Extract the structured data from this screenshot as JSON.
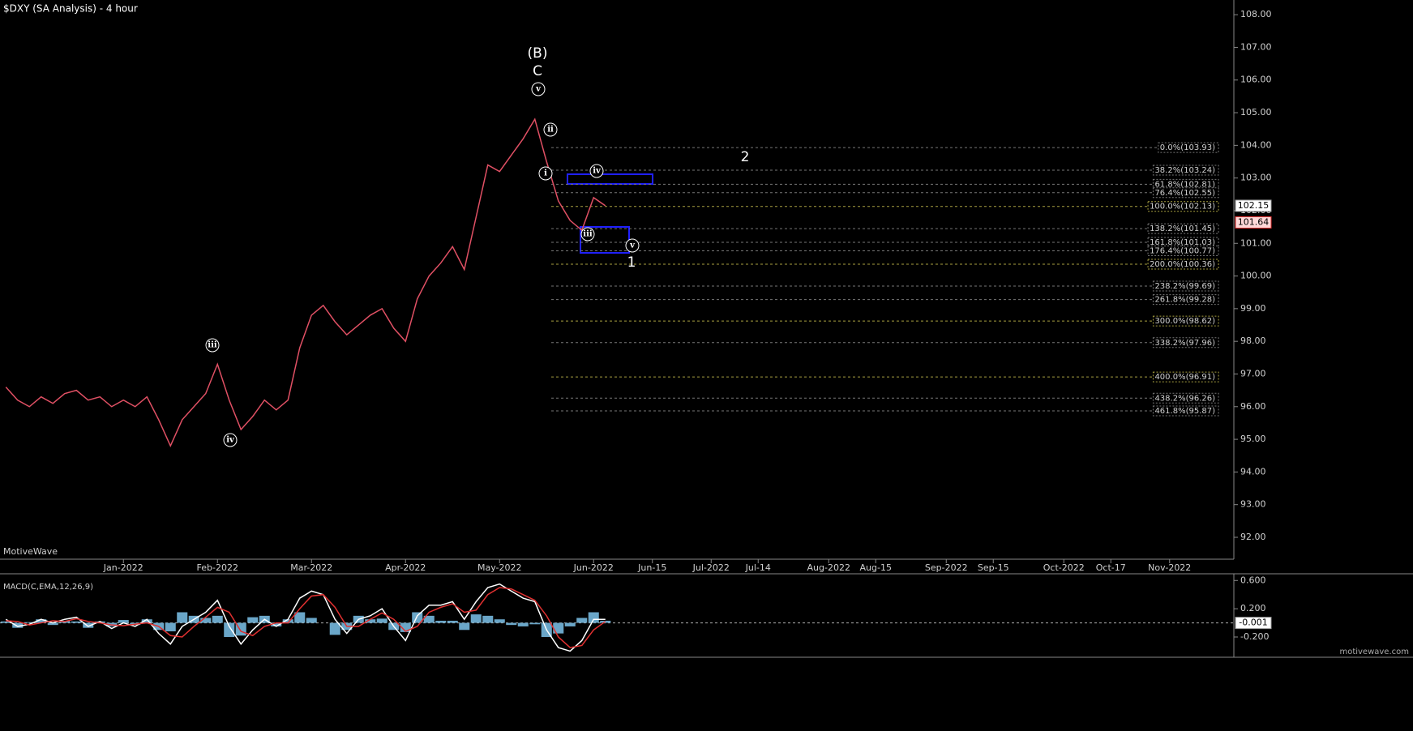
{
  "chart_data": [
    {
      "type": "line",
      "title": "$DXY (SA Analysis) - 4 hour",
      "color": "#e05064",
      "categories": [
        null,
        null,
        null,
        null,
        null,
        null,
        null,
        null,
        null,
        null,
        "Jan-2022",
        null,
        null,
        null,
        null,
        null,
        null,
        null,
        "Feb-2022",
        null,
        null,
        null,
        null,
        null,
        null,
        null,
        "Mar-2022",
        null,
        null,
        null,
        null,
        null,
        null,
        null,
        "Apr-2022",
        null,
        null,
        null,
        null,
        null,
        null,
        null,
        "May-2022",
        null,
        null,
        null,
        null,
        null,
        null,
        null,
        "Jun-2022",
        null,
        null,
        null,
        null,
        "Jun-15",
        null,
        null,
        null,
        null,
        "Jul-2022",
        null,
        null,
        null,
        "Jul-14",
        null,
        null,
        null,
        null,
        null,
        "Aug-2022",
        null,
        null,
        null,
        "Aug-15",
        null,
        null,
        null,
        null,
        null,
        "Sep-2022",
        null,
        null,
        null,
        "Sep-15",
        null,
        null,
        null,
        null,
        null,
        "Oct-2022",
        null,
        null,
        null,
        "Oct-17",
        null,
        null,
        null,
        null,
        "Nov-2022",
        null,
        null,
        null,
        null
      ],
      "values": [
        96.6,
        96.2,
        96.0,
        96.3,
        96.1,
        96.4,
        96.5,
        96.2,
        96.3,
        96.0,
        96.2,
        96.0,
        96.3,
        95.6,
        94.8,
        95.6,
        96.0,
        96.4,
        97.3,
        96.2,
        95.3,
        95.7,
        96.2,
        95.9,
        96.2,
        97.8,
        98.8,
        99.1,
        98.6,
        98.2,
        98.5,
        98.8,
        99.0,
        98.4,
        98.0,
        99.3,
        100.0,
        100.4,
        100.9,
        100.2,
        101.8,
        103.4,
        103.2,
        103.7,
        104.2,
        104.8,
        103.5,
        102.3,
        101.7,
        101.4,
        102.4,
        102.15,
        null,
        null,
        null,
        null,
        null,
        null,
        null,
        null,
        null,
        null,
        null,
        null,
        null,
        null,
        null,
        null,
        null,
        null,
        null,
        null,
        null,
        null,
        null,
        null,
        null,
        null,
        null,
        null,
        null,
        null,
        null,
        null,
        null,
        null,
        null,
        null,
        null,
        null,
        null,
        null,
        null,
        null,
        null,
        null,
        null,
        null,
        null,
        null,
        null,
        null,
        null,
        null
      ],
      "ylim": [
        91.33,
        108.45
      ],
      "yticks": [
        {
          "value": 92,
          "label": "92.00"
        },
        {
          "value": 93,
          "label": "93.00"
        },
        {
          "value": 94,
          "label": "94.00"
        },
        {
          "value": 95,
          "label": "95.00"
        },
        {
          "value": 96,
          "label": "96.00"
        },
        {
          "value": 97,
          "label": "97.00"
        },
        {
          "value": 98,
          "label": "98.00"
        },
        {
          "value": 99,
          "label": "99.00"
        },
        {
          "value": 100,
          "label": "100.00"
        },
        {
          "value": 101,
          "label": "101.00"
        },
        {
          "value": 102,
          "label": "102.00"
        },
        {
          "value": 103,
          "label": "103.00"
        },
        {
          "value": 104,
          "label": "104.00"
        },
        {
          "value": 105,
          "label": "105.00"
        },
        {
          "value": 106,
          "label": "106.00"
        },
        {
          "value": 107,
          "label": "107.00"
        },
        {
          "value": 108,
          "label": "108.00"
        }
      ],
      "price_markers": [
        102.15,
        101.64
      ],
      "fib_levels": [
        {
          "value": 103.93,
          "label": "0.0%(103.93)"
        },
        {
          "value": 103.24,
          "label": "38.2%(103.24)"
        },
        {
          "value": 102.81,
          "label": "61.8%(102.81)"
        },
        {
          "value": 102.55,
          "label": "76.4%(102.55)"
        },
        {
          "value": 102.13,
          "label": "100.0%(102.13)"
        },
        {
          "value": 101.45,
          "label": "138.2%(101.45)"
        },
        {
          "value": 101.03,
          "label": "161.8%(101.03)"
        },
        {
          "value": 100.77,
          "label": "176.4%(100.77)"
        },
        {
          "value": 100.36,
          "label": "200.0%(100.36)"
        },
        {
          "value": 99.69,
          "label": "238.2%(99.69)"
        },
        {
          "value": 99.28,
          "label": "261.8%(99.28)"
        },
        {
          "value": 98.62,
          "label": "300.0%(98.62)"
        },
        {
          "value": 97.96,
          "label": "338.2%(97.96)"
        },
        {
          "value": 96.91,
          "label": "400.0%(96.91)"
        },
        {
          "value": 96.26,
          "label": "438.2%(96.26)"
        },
        {
          "value": 95.87,
          "label": "461.8%(95.87)"
        }
      ],
      "wave_labels": [
        "(B)",
        "C",
        "v",
        "ii",
        "i",
        "iv",
        "iii",
        "v",
        "1",
        "2",
        "iii",
        "iv"
      ]
    },
    {
      "type": "macd",
      "title": "MACD(C,EMA,12,26,9)",
      "series": [
        {
          "name": "MACD",
          "color": "#ffffff",
          "values": [
            0.05,
            -0.05,
            -0.02,
            0.05,
            0.0,
            0.05,
            0.08,
            -0.05,
            0.02,
            -0.08,
            0.0,
            -0.05,
            0.05,
            -0.15,
            -0.3,
            -0.05,
            0.05,
            0.15,
            0.32,
            -0.05,
            -0.3,
            -0.1,
            0.05,
            -0.05,
            0.05,
            0.35,
            0.45,
            0.4,
            0.05,
            -0.15,
            0.05,
            0.1,
            0.2,
            -0.05,
            -0.25,
            0.1,
            0.25,
            0.25,
            0.3,
            0.05,
            0.3,
            0.5,
            0.55,
            0.45,
            0.35,
            0.3,
            -0.1,
            -0.35,
            -0.4,
            -0.25,
            0.05,
            0.05,
            null,
            null,
            null,
            null,
            null,
            null,
            null,
            null,
            null,
            null,
            null,
            null,
            null,
            null,
            null,
            null,
            null,
            null,
            null,
            null,
            null,
            null,
            null,
            null,
            null,
            null,
            null,
            null,
            null,
            null,
            null,
            null,
            null,
            null,
            null,
            null,
            null,
            null,
            null,
            null,
            null,
            null,
            null,
            null,
            null,
            null,
            null,
            null,
            null,
            null,
            null,
            null
          ]
        },
        {
          "name": "Signal",
          "color": "#e03030",
          "values": [
            0.03,
            0.02,
            -0.03,
            0.0,
            0.03,
            0.02,
            0.06,
            0.02,
            0.0,
            -0.03,
            -0.04,
            -0.02,
            0.0,
            -0.05,
            -0.18,
            -0.2,
            -0.05,
            0.08,
            0.22,
            0.15,
            -0.12,
            -0.18,
            -0.05,
            0.0,
            0.0,
            0.2,
            0.38,
            0.4,
            0.22,
            -0.05,
            -0.05,
            0.05,
            0.14,
            0.05,
            -0.12,
            -0.05,
            0.15,
            0.22,
            0.27,
            0.15,
            0.18,
            0.4,
            0.5,
            0.48,
            0.4,
            0.32,
            0.1,
            -0.2,
            -0.35,
            -0.32,
            -0.1,
            0.02,
            null,
            null,
            null,
            null,
            null,
            null,
            null,
            null,
            null,
            null,
            null,
            null,
            null,
            null,
            null,
            null,
            null,
            null,
            null,
            null,
            null,
            null,
            null,
            null,
            null,
            null,
            null,
            null,
            null,
            null,
            null,
            null,
            null,
            null,
            null,
            null,
            null,
            null,
            null,
            null,
            null,
            null,
            null,
            null,
            null,
            null,
            null,
            null,
            null,
            null,
            null,
            null
          ]
        },
        {
          "name": "Histogram",
          "color": "#6aa6c8",
          "values": [
            0.02,
            -0.07,
            0.01,
            0.05,
            -0.03,
            0.03,
            0.02,
            -0.07,
            0.02,
            -0.05,
            0.04,
            -0.03,
            0.05,
            -0.1,
            -0.12,
            0.15,
            0.1,
            0.07,
            0.1,
            -0.2,
            -0.18,
            0.08,
            0.1,
            -0.05,
            0.05,
            0.15,
            0.07,
            0.0,
            -0.17,
            -0.1,
            0.1,
            0.05,
            0.06,
            -0.1,
            -0.13,
            0.15,
            0.1,
            0.03,
            0.03,
            -0.1,
            0.12,
            0.1,
            0.05,
            -0.03,
            -0.05,
            -0.02,
            -0.2,
            -0.15,
            -0.05,
            0.07,
            0.15,
            0.03,
            null,
            null,
            null,
            null,
            null,
            null,
            null,
            null,
            null,
            null,
            null,
            null,
            null,
            null,
            null,
            null,
            null,
            null,
            null,
            null,
            null,
            null,
            null,
            null,
            null,
            null,
            null,
            null,
            null,
            null,
            null,
            null,
            null,
            null,
            null,
            null,
            null,
            null,
            null,
            null,
            null,
            null,
            null,
            null,
            null,
            null,
            null,
            null,
            null,
            null,
            null,
            null
          ]
        }
      ],
      "ylim": [
        -0.487,
        0.695
      ],
      "yticks": [
        {
          "value": 0.6,
          "label": "0.600"
        },
        {
          "value": 0.2,
          "label": "0.200"
        },
        {
          "value": -0.2,
          "label": "-0.200"
        }
      ],
      "current": -0.001
    }
  ],
  "footer": {
    "brand": "MotiveWave",
    "site": "motivewave.com"
  }
}
